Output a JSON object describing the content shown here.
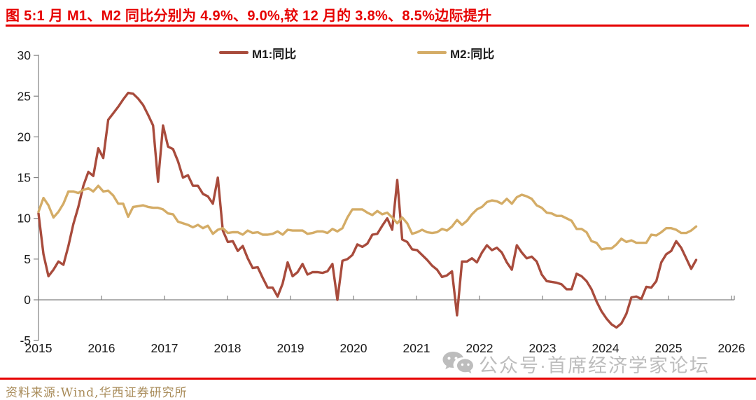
{
  "header": {
    "figure_title": "图 5:1 月 M1、M2 同比分别为 4.9%、9.0%,较 12 月的 3.8%、8.5%边际提升"
  },
  "chart_data": {
    "type": "line",
    "title": "图 5:1 月 M1、M2 同比分别为 4.9%、9.0%,较 12 月的 3.8%、8.5%边际提升",
    "xlabel": "",
    "ylabel": "",
    "unit": "%",
    "x_start": "2015-01",
    "x_end": "2026-01",
    "x_frequency": "monthly",
    "x_tick_labels": [
      "2015",
      "2016",
      "2017",
      "2018",
      "2019",
      "2020",
      "2021",
      "2022",
      "2023",
      "2024",
      "2025",
      "2026"
    ],
    "y_ticks": [
      30,
      25,
      20,
      15,
      10,
      5,
      0,
      -5
    ],
    "ylim": [
      -5,
      30
    ],
    "grid": false,
    "legend_position": "top-center",
    "series": [
      {
        "name": "M1:同比",
        "color": "#A84B3C",
        "values": [
          10.6,
          5.6,
          2.9,
          3.7,
          4.7,
          4.3,
          6.6,
          9.3,
          11.4,
          14.0,
          15.7,
          15.2,
          18.6,
          17.4,
          22.1,
          22.9,
          23.7,
          24.6,
          25.4,
          25.3,
          24.7,
          23.9,
          22.7,
          21.4,
          14.5,
          21.4,
          18.8,
          18.5,
          17.0,
          15.0,
          15.3,
          14.0,
          14.0,
          13.0,
          12.7,
          11.8,
          15.0,
          8.5,
          7.1,
          7.2,
          6.0,
          6.6,
          5.1,
          3.9,
          4.0,
          2.7,
          1.5,
          1.5,
          0.4,
          2.0,
          4.6,
          2.9,
          3.4,
          4.4,
          3.1,
          3.4,
          3.4,
          3.3,
          3.5,
          4.4,
          0.0,
          4.8,
          5.0,
          5.5,
          6.8,
          6.5,
          6.9,
          8.0,
          8.1,
          9.1,
          10.0,
          8.6,
          14.7,
          7.4,
          7.1,
          6.2,
          6.1,
          5.5,
          4.9,
          4.2,
          3.7,
          2.8,
          3.0,
          3.5,
          -1.9,
          4.7,
          4.7,
          5.1,
          4.6,
          5.8,
          6.7,
          6.1,
          6.4,
          5.8,
          4.6,
          3.7,
          6.7,
          5.8,
          5.1,
          5.3,
          4.7,
          3.1,
          2.3,
          2.2,
          2.1,
          1.9,
          1.3,
          1.3,
          3.2,
          2.9,
          2.3,
          1.3,
          -0.2,
          -1.4,
          -2.3,
          -3.0,
          -3.4,
          -2.9,
          -1.7,
          0.3,
          0.4,
          0.1,
          1.6,
          1.5,
          2.3,
          4.6,
          5.6,
          6.0,
          7.2,
          6.4,
          5.1,
          3.8,
          4.9
        ]
      },
      {
        "name": "M2:同比",
        "color": "#D4AC66",
        "values": [
          10.8,
          12.5,
          11.6,
          10.1,
          10.8,
          11.8,
          13.3,
          13.3,
          13.1,
          13.5,
          13.7,
          13.3,
          14.0,
          13.3,
          13.4,
          12.8,
          11.8,
          11.8,
          10.2,
          11.4,
          11.5,
          11.6,
          11.4,
          11.3,
          11.3,
          11.1,
          10.6,
          10.5,
          9.6,
          9.4,
          9.2,
          8.9,
          9.2,
          8.8,
          9.1,
          8.1,
          8.6,
          8.8,
          8.2,
          8.3,
          8.3,
          8.0,
          8.5,
          8.2,
          8.3,
          8.0,
          8.0,
          8.1,
          8.4,
          8.0,
          8.6,
          8.5,
          8.5,
          8.5,
          8.1,
          8.2,
          8.4,
          8.4,
          8.2,
          8.7,
          8.4,
          8.8,
          10.1,
          11.1,
          11.1,
          11.1,
          10.7,
          10.4,
          10.9,
          10.5,
          10.7,
          10.1,
          9.4,
          10.1,
          9.4,
          8.1,
          8.3,
          8.6,
          8.3,
          8.2,
          8.3,
          8.7,
          8.5,
          9.0,
          9.8,
          9.2,
          9.7,
          10.5,
          11.1,
          11.4,
          12.0,
          12.2,
          12.1,
          11.8,
          12.4,
          11.8,
          12.6,
          12.9,
          12.7,
          12.4,
          11.6,
          11.3,
          10.7,
          10.6,
          10.3,
          10.3,
          10.0,
          9.7,
          8.7,
          8.7,
          8.3,
          7.2,
          7.0,
          6.2,
          6.3,
          6.3,
          6.8,
          7.5,
          7.1,
          7.3,
          7.0,
          7.0,
          7.0,
          8.0,
          7.9,
          8.3,
          8.8,
          8.8,
          8.6,
          8.2,
          8.2,
          8.5,
          9.0
        ]
      }
    ],
    "key_values": {
      "m1_jan": "4.9%",
      "m2_jan": "9.0%",
      "m1_dec": "3.8%",
      "m2_dec": "8.5%"
    }
  },
  "watermark": {
    "icon": "wechat-icon",
    "text": "公众号·首席经济学家论坛",
    "color": "#bdbdbd"
  },
  "footer": {
    "source": "资料来源:Wind,华西证券研究所"
  },
  "colors": {
    "title_red": "#E60000",
    "rule_red": "#E60000",
    "axis_gray": "#808080",
    "tick_label": "#1a1a1a",
    "source_brown": "#A98C5A"
  }
}
